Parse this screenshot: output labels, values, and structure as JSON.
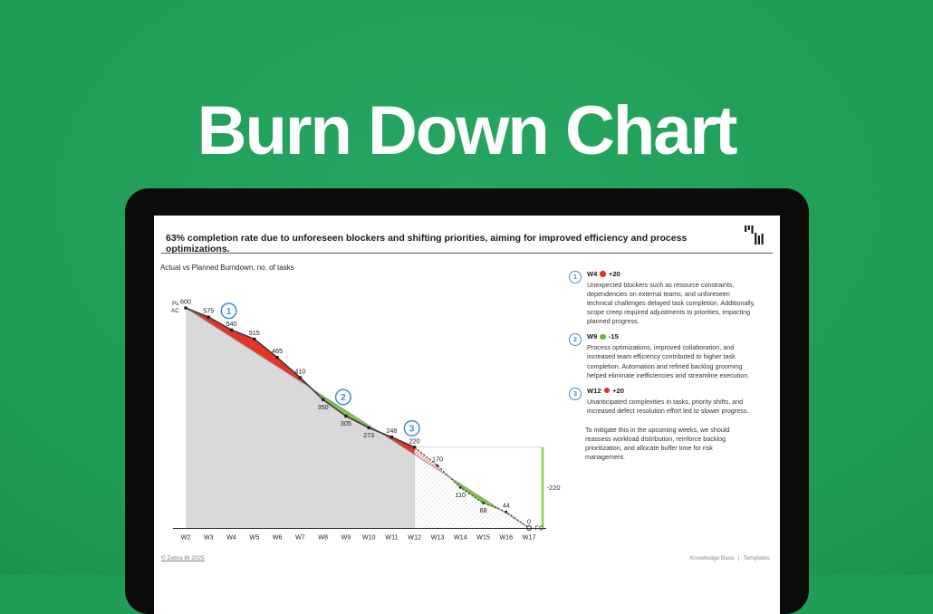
{
  "page_title": "Burn Down Chart",
  "colors": {
    "background_green": "#1f9c55",
    "unfavorable_red": "#e63323",
    "favorable_green": "#7fc241",
    "delta_line_green": "#8ed14f",
    "annotation_blue": "#3e8ed4",
    "area_gray": "#d9d9d9",
    "dot_red": "#e03123",
    "dot_green": "#5fb83a"
  },
  "slide": {
    "header_text": "63% completion rate due to unforeseen blockers and shifting priorities, aiming for improved efficiency and process optimizations.",
    "logo_name": "zebra-bi-logo",
    "footer_left": "© Zebra BI 2025",
    "footer_links": [
      "Knowledge Base",
      "Templates"
    ],
    "footer_separator": "|"
  },
  "chart_data": {
    "type": "area",
    "title": "Actual vs Planned Burndown, no. of tasks",
    "x": [
      "W2",
      "W3",
      "W4",
      "W5",
      "W6",
      "W7",
      "W8",
      "W9",
      "W10",
      "W11",
      "W12",
      "W13",
      "W14",
      "W15",
      "W16",
      "W17"
    ],
    "series": [
      {
        "name": "PL",
        "values": [
          600,
          560,
          520,
          480,
          440,
          400,
          360,
          320,
          280,
          240,
          200,
          160,
          120,
          80,
          40,
          0
        ]
      },
      {
        "name": "AC",
        "values": [
          600,
          575,
          540,
          515,
          465,
          410,
          350,
          305,
          273,
          248,
          220
        ]
      },
      {
        "name": "FC",
        "values": [
          220,
          170,
          110,
          68,
          44,
          0
        ]
      }
    ],
    "forecast_start_index": 10,
    "point_labels": [
      "600",
      "575",
      "540",
      "515",
      "465",
      "410",
      "350",
      "305",
      "273",
      "248",
      "220",
      "170",
      "110",
      "68",
      "44",
      "0"
    ],
    "end_marker_label": "FC",
    "remaining_label": "-220",
    "ylim": [
      0,
      600
    ],
    "legend": {
      "pl": "PL",
      "ac": "AC"
    },
    "numbered_markers": [
      {
        "n": "1",
        "index": 2
      },
      {
        "n": "2",
        "index": 7
      },
      {
        "n": "3",
        "index": 10
      }
    ]
  },
  "annotations": [
    {
      "num": "1",
      "week": "W4",
      "delta": "+20",
      "dot": "red",
      "text": "Unexpected blockers such as resource constraints, dependencies on external teams, and unforeseen technical challenges delayed task completion. Additionally, scope creep required adjustments to priorities, impacting planned progress."
    },
    {
      "num": "2",
      "week": "W9",
      "delta": "-15",
      "dot": "green",
      "text": "Process optimizations, improved collaboration, and increased team efficiency contributed to higher task completion. Automation and refined backlog grooming helped eliminate inefficiencies and streamline execution."
    },
    {
      "num": "3",
      "week": "W12",
      "delta": "+20",
      "dot": "red",
      "text": "Unanticipated complexities in tasks, priority shifts, and increased defect resolution effort led to slower progress."
    }
  ],
  "annotation_extra": "To mitigate this in the upcoming weeks, we should reassess workload distribution, reinforce backlog prioritization, and allocate buffer time for risk management."
}
